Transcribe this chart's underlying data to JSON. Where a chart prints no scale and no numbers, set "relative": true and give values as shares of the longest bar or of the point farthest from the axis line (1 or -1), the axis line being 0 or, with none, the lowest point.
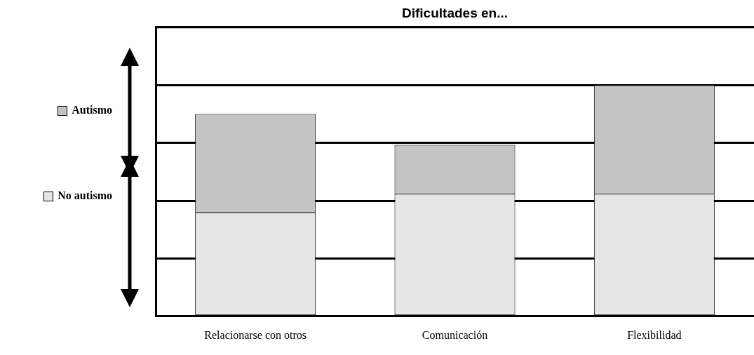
{
  "chart_data": {
    "type": "bar",
    "title": "Dificultades en...",
    "categories": [
      "Relacionarse con otros",
      "Comunicación",
      "Flexibilidad"
    ],
    "stacked": true,
    "relative": true,
    "grid": "y",
    "legend": "left",
    "series": [
      {
        "name": "No autismo",
        "color": "#e6e6e6",
        "values": [
          0.449,
          0.529,
          0.529
        ]
      },
      {
        "name": "Autismo",
        "color": "#c4c4c4",
        "values": [
          0.426,
          0.212,
          0.471
        ]
      }
    ]
  }
}
